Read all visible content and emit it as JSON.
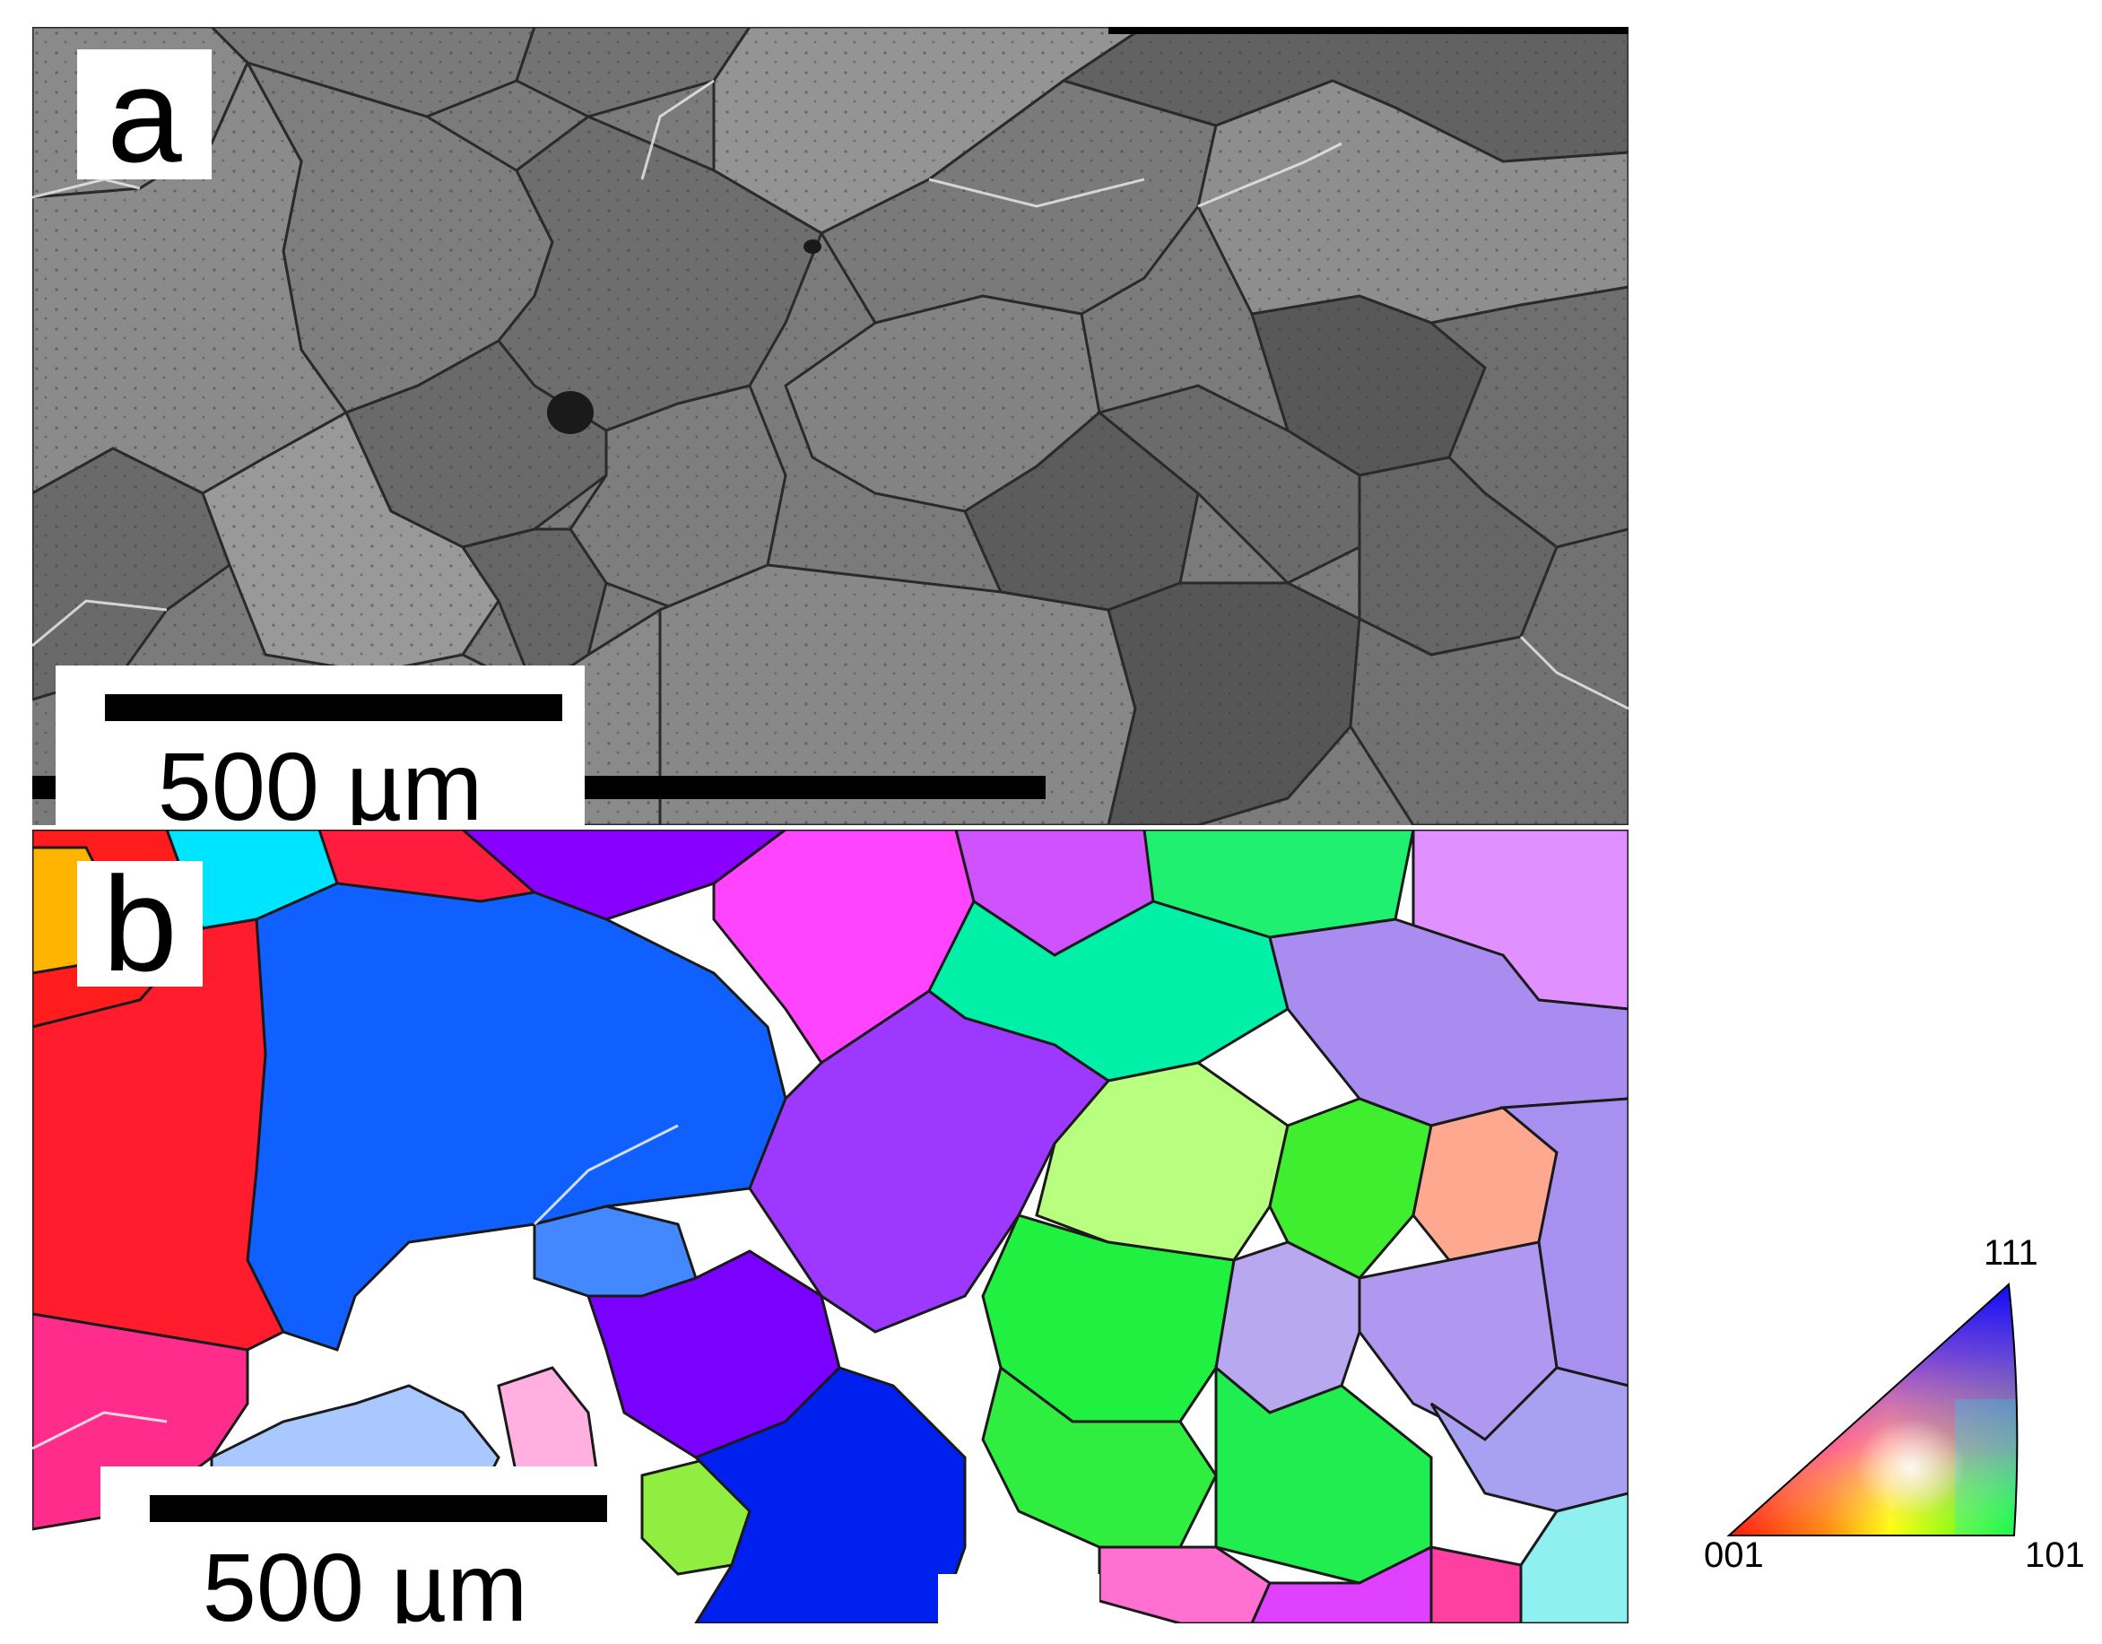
{
  "panels": {
    "a": {
      "label": "a",
      "scale_bar": "500 µm"
    },
    "b": {
      "label": "b",
      "scale_bar": "500 µm"
    }
  },
  "color_key": {
    "labels": {
      "top": "111",
      "left": "001",
      "right": "101"
    },
    "colors": {
      "001": "#ff0000",
      "101": "#00ff00",
      "111": "#0000ff"
    }
  }
}
